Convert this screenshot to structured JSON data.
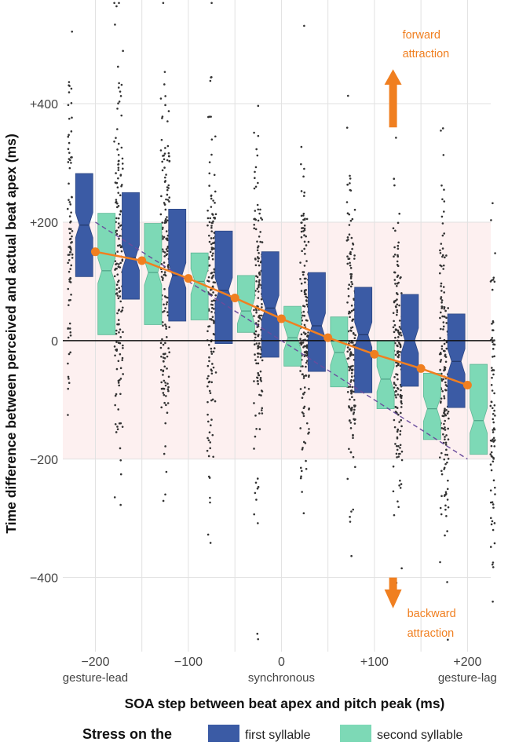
{
  "chart_data": {
    "type": "boxplot",
    "xlabel": "SOA step between beat apex and pitch peak (ms)",
    "ylabel": "Time difference between perceived and actual beat apex (ms)",
    "xlim": [
      -235,
      225
    ],
    "ylim": [
      -525,
      575
    ],
    "x_ticks": [
      {
        "value": -200,
        "label": "−200"
      },
      {
        "value": -100,
        "label": "−100"
      },
      {
        "value": 0,
        "label": "0"
      },
      {
        "value": 100,
        "label": "+100"
      },
      {
        "value": 200,
        "label": "+200"
      }
    ],
    "x_sublabels": [
      {
        "value": -200,
        "label": "gesture-lead"
      },
      {
        "value": 0,
        "label": "synchronous"
      },
      {
        "value": 200,
        "label": "gesture-lag"
      }
    ],
    "y_ticks": [
      {
        "value": 400,
        "label": "+400"
      },
      {
        "value": 200,
        "label": "+200"
      },
      {
        "value": 0,
        "label": "0"
      },
      {
        "value": -200,
        "label": "−200"
      },
      {
        "value": -400,
        "label": "−400"
      }
    ],
    "shaded_band": [
      -200,
      200
    ],
    "steps": [
      -200,
      -150,
      -100,
      -50,
      0,
      50,
      100,
      150,
      200
    ],
    "series": [
      {
        "name": "first syllable",
        "color": "#3b5ba5",
        "boxes": [
          {
            "q1": 108,
            "median": 195,
            "q3": 282
          },
          {
            "q1": 70,
            "median": 140,
            "q3": 250
          },
          {
            "q1": 33,
            "median": 110,
            "q3": 222
          },
          {
            "q1": -5,
            "median": 85,
            "q3": 185
          },
          {
            "q1": -28,
            "median": 55,
            "q3": 150
          },
          {
            "q1": -52,
            "median": 25,
            "q3": 115
          },
          {
            "q1": -88,
            "median": 10,
            "q3": 90
          },
          {
            "q1": -77,
            "median": 0,
            "q3": 78
          },
          {
            "q1": -113,
            "median": -35,
            "q3": 45
          }
        ]
      },
      {
        "name": "second syllable",
        "color": "#7dd9b6",
        "boxes": [
          {
            "q1": 10,
            "median": 118,
            "q3": 215
          },
          {
            "q1": 27,
            "median": 115,
            "q3": 198
          },
          {
            "q1": 35,
            "median": 100,
            "q3": 148
          },
          {
            "q1": 14,
            "median": 50,
            "q3": 110
          },
          {
            "q1": -43,
            "median": 5,
            "q3": 58
          },
          {
            "q1": -78,
            "median": -20,
            "q3": 40
          },
          {
            "q1": -115,
            "median": -65,
            "q3": 0
          },
          {
            "q1": -167,
            "median": -115,
            "q3": -55
          },
          {
            "q1": -192,
            "median": -135,
            "q3": -40
          }
        ]
      }
    ],
    "mean_line": {
      "color": "#f07f20",
      "values": [
        150,
        135,
        105,
        72,
        37,
        5,
        -23,
        -47,
        -75
      ]
    },
    "reference_line": {
      "color": "#6a4c9c",
      "from": [
        -200,
        200
      ],
      "to": [
        200,
        -200
      ]
    },
    "annotations": [
      {
        "name": "forward",
        "text": [
          "forward",
          "attraction"
        ],
        "color": "#f07f20"
      },
      {
        "name": "backward",
        "text": [
          "backward",
          "attraction"
        ],
        "color": "#f07f20"
      }
    ],
    "legend": {
      "title": "Stress on the",
      "position": "bottom",
      "entries": [
        {
          "label": "first syllable",
          "color": "#3b5ba5"
        },
        {
          "label": "second syllable",
          "color": "#7dd9b6"
        }
      ]
    }
  }
}
